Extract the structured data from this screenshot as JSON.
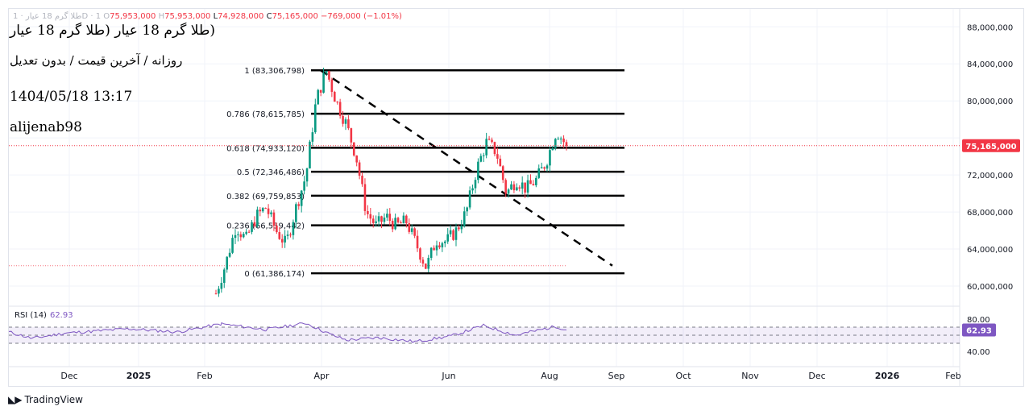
{
  "header": {
    "symbol_faded": "طلا گرم 18 عیار · 1D · 1",
    "open_label": "O",
    "open_value": "75,953,000",
    "high_label": "H",
    "high_value": "75,953,000",
    "low_label": "L",
    "low_value": "74,928,000",
    "close_label": "C",
    "close_value": "75,165,000",
    "change": "−769,000 (−1.01%)"
  },
  "overlay": {
    "title": "(طلا گرم 18 عیار (طلا گرم 18 عیار",
    "subtitle": "روزانه / آخرین قیمت / بدون تعدیل",
    "datetime": "1404/05/18 13:17",
    "author": "alijenab98"
  },
  "rsi": {
    "label": "RSI (14)",
    "value": "62.93",
    "axis_labels": [
      "80.00",
      "40.00"
    ],
    "upper_band": 70,
    "middle_band": 50,
    "lower_band": 30,
    "color": "#7e57c2"
  },
  "footer": {
    "brand": "TradingView"
  },
  "colors": {
    "up": "#089981",
    "down": "#f23645",
    "price_tag": "#f23645",
    "rsi": "#7e57c2"
  },
  "chart_data": {
    "type": "candlestick",
    "title": "طلا گرم 18 عیار",
    "interval": "1D",
    "price_axis": {
      "ylim": [
        58500000,
        90000000
      ],
      "ticks": [
        60000000,
        64000000,
        68000000,
        72000000,
        76000000,
        80000000,
        84000000,
        88000000
      ],
      "tick_labels": [
        "60,000,000",
        "64,000,000",
        "68,000,000",
        "72,000,000",
        "76,000,000",
        "80,000,000",
        "84,000,000",
        "88,000,000"
      ]
    },
    "time_axis": {
      "labels": [
        "Dec",
        "2025",
        "Feb",
        "Apr",
        "Jun",
        "Aug",
        "Sep",
        "Oct",
        "Nov",
        "Dec",
        "2026",
        "Feb"
      ],
      "bold": [
        "2025",
        "2026"
      ]
    },
    "last_price": 75165000,
    "last_price_label": "75,165,000",
    "fibonacci": [
      {
        "level": "1",
        "price": 83306798,
        "label": "1 (83,306,798)"
      },
      {
        "level": "0.786",
        "price": 78615785,
        "label": "0.786 (78,615,785)"
      },
      {
        "level": "0.618",
        "price": 74933120,
        "label": "0.618 (74,933,120)"
      },
      {
        "level": "0.5",
        "price": 72346486,
        "label": "0.5 (72,346,486)"
      },
      {
        "level": "0.382",
        "price": 69759853,
        "label": "0.382 (69,759,853)"
      },
      {
        "level": "0.236",
        "price": 66559442,
        "label": "0.236 (66,559,442)"
      },
      {
        "level": "0",
        "price": 61386174,
        "label": "0 (61,386,174)"
      }
    ],
    "trendline": {
      "style": "dashed",
      "from": {
        "date": "Mar end",
        "price": 83300000
      },
      "to": {
        "date": "Sep",
        "price": 62200000
      }
    },
    "reference_line_price": 62200000,
    "price_path": [
      [
        "Feb early",
        59200000
      ],
      [
        "Feb mid",
        62500000
      ],
      [
        "Feb mid+",
        66500000
      ],
      [
        "Feb late",
        65000000
      ],
      [
        "Mar early",
        67500000
      ],
      [
        "Mar early+",
        68500000
      ],
      [
        "Mar mid",
        66000000
      ],
      [
        "Mar mid+",
        64500000
      ],
      [
        "Mar late",
        68500000
      ],
      [
        "Mar late+",
        72000000
      ],
      [
        "Mar end",
        80000000
      ],
      [
        "Apr start",
        83300000
      ],
      [
        "Apr early",
        80000000
      ],
      [
        "Apr early+",
        77500000
      ],
      [
        "Apr mid",
        74000000
      ],
      [
        "Apr mid+",
        68000000
      ],
      [
        "Apr late",
        66500000
      ],
      [
        "May early",
        67500000
      ],
      [
        "May mid",
        66500000
      ],
      [
        "May mid+",
        67000000
      ],
      [
        "May late",
        64500000
      ],
      [
        "May end",
        62000000
      ],
      [
        "Jun early",
        65000000
      ],
      [
        "Jun mid",
        64800000
      ],
      [
        "Jun mid+",
        66000000
      ],
      [
        "Jun late",
        68000000
      ],
      [
        "Jun end",
        72500000
      ],
      [
        "Jul start",
        75500000
      ],
      [
        "Jul early",
        74500000
      ],
      [
        "Jul early+",
        70000000
      ],
      [
        "Jul mid",
        71500000
      ],
      [
        "Jul mid+",
        70500000
      ],
      [
        "Jul late",
        71500000
      ],
      [
        "Aug start",
        73500000
      ],
      [
        "Aug early",
        76800000
      ],
      [
        "Aug early+",
        75165000
      ]
    ]
  }
}
